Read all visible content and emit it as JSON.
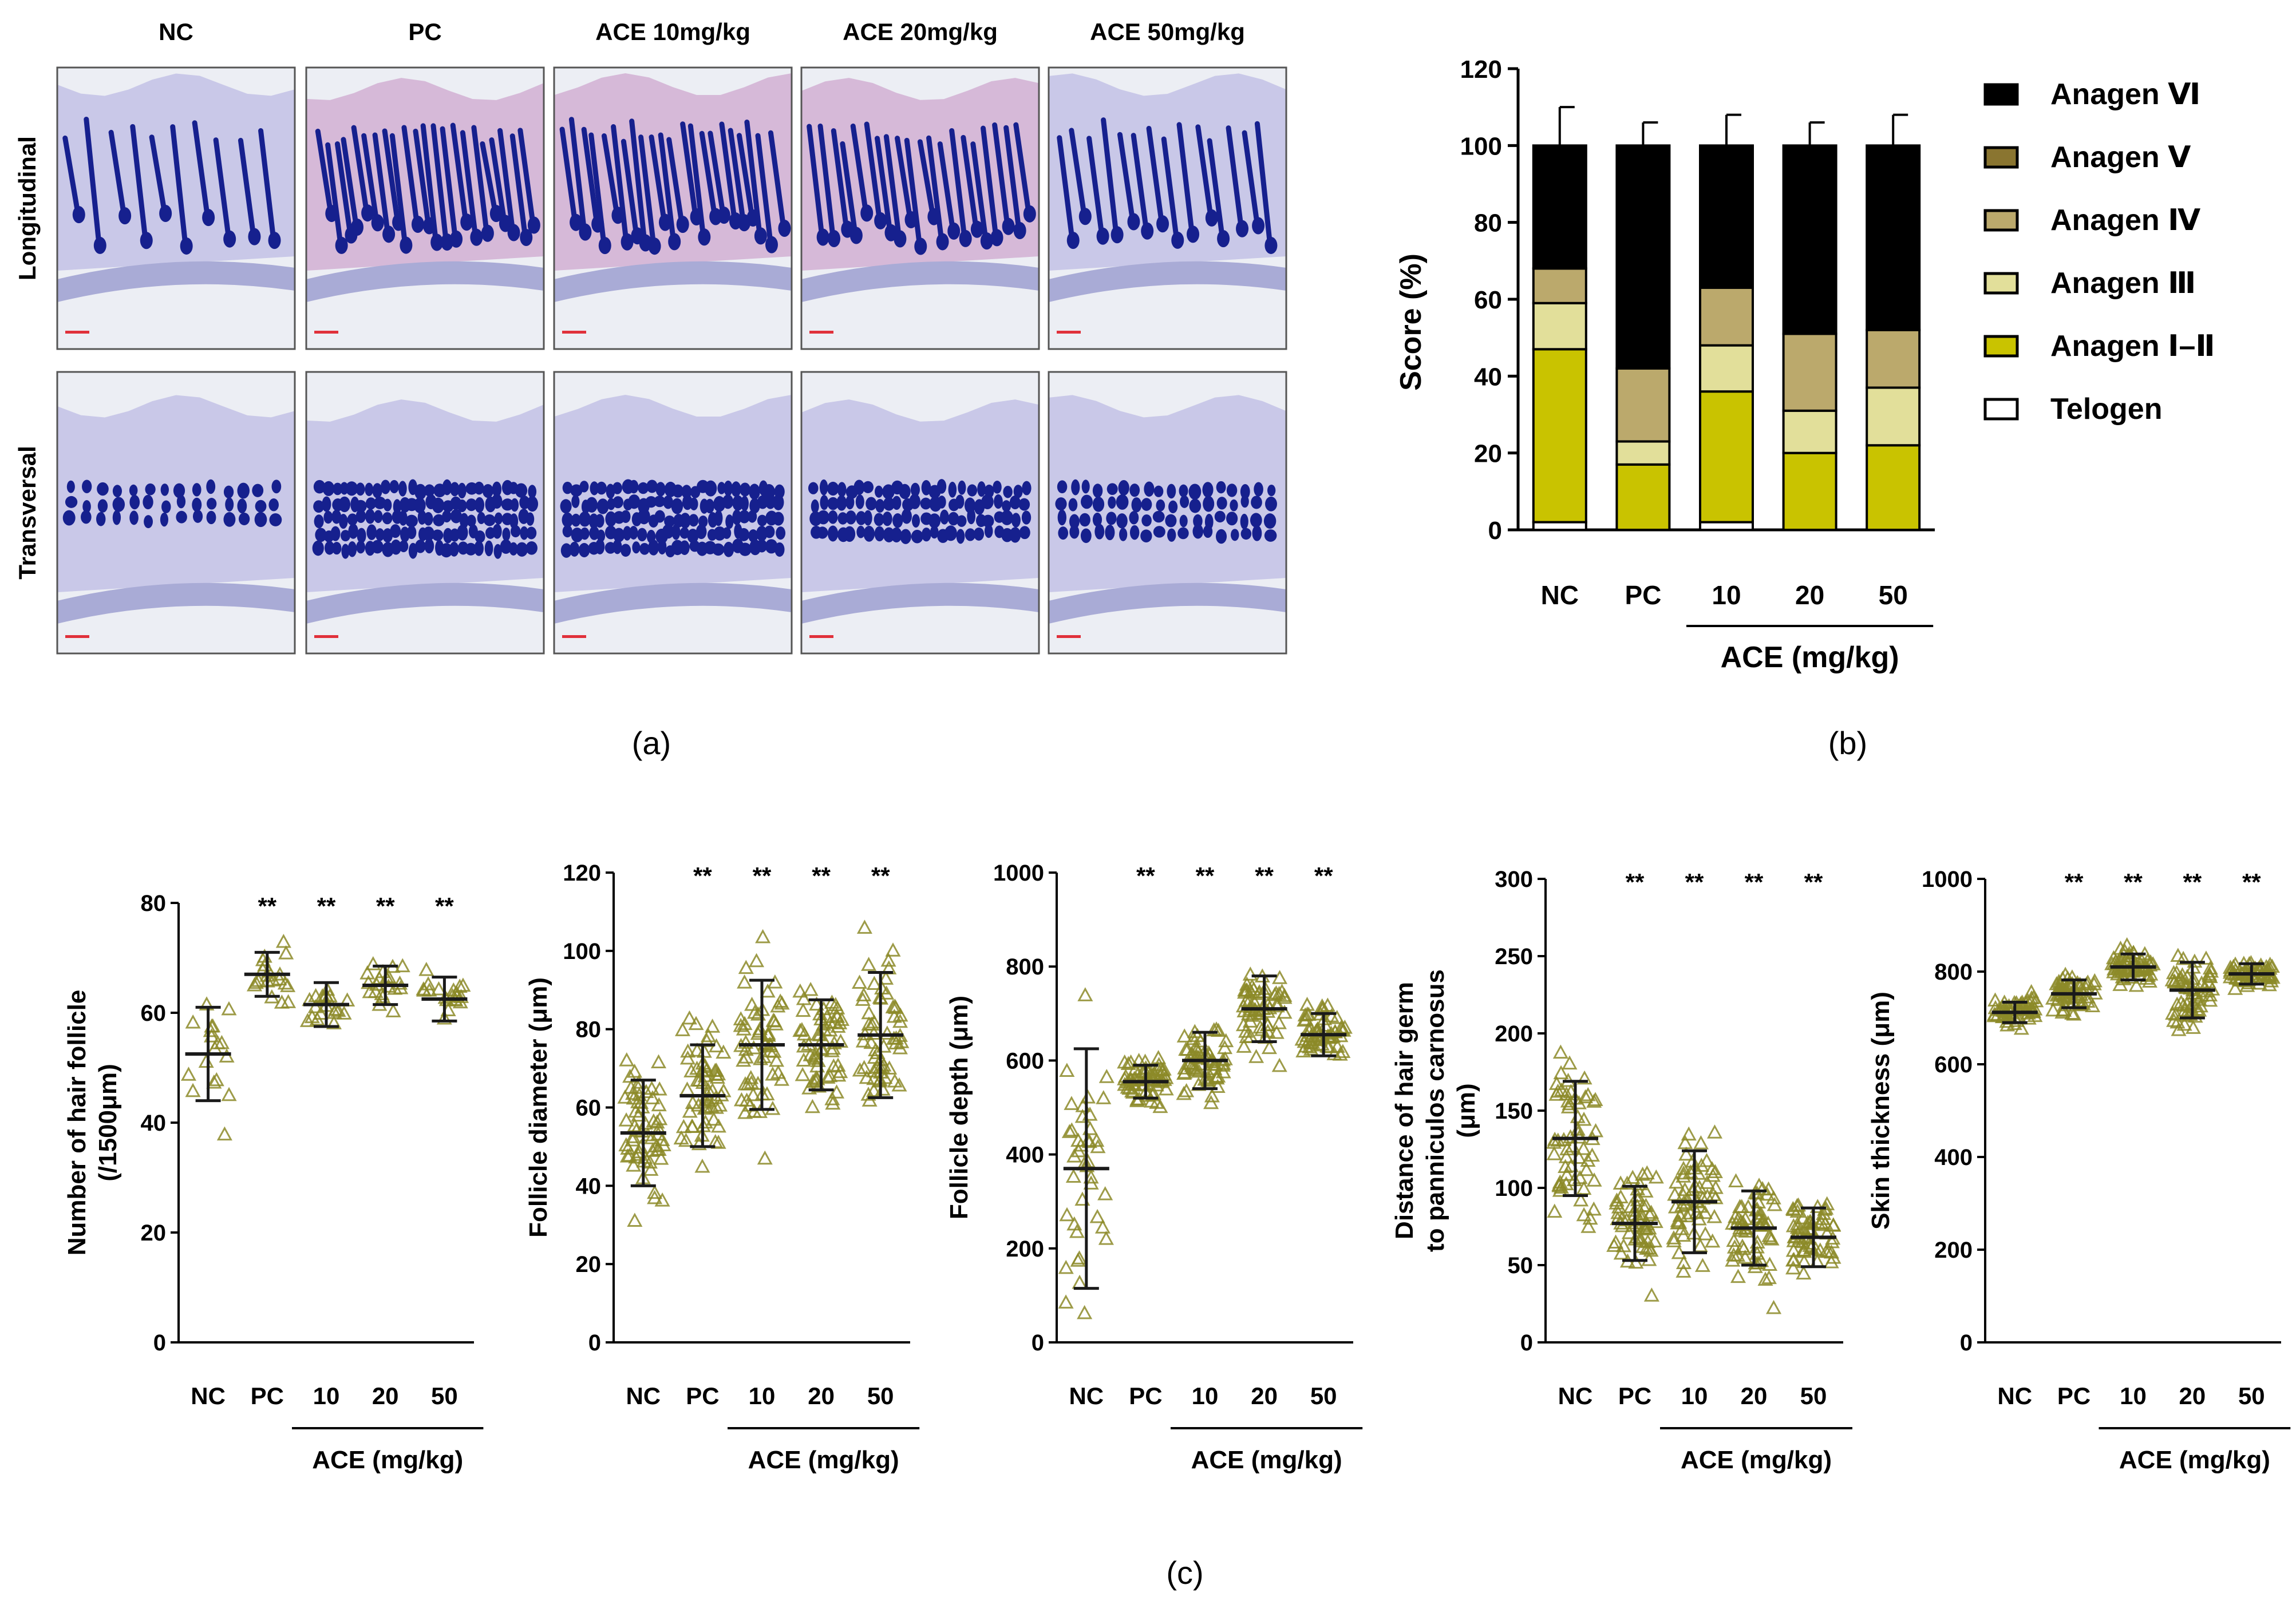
{
  "histology": {
    "columns": [
      "NC",
      "PC",
      "ACE 10mg/kg",
      "ACE 20mg/kg",
      "ACE 50mg/kg"
    ],
    "rows": [
      "Longitudinal",
      "Transversal"
    ],
    "colors": {
      "tissue": "#c9c8e8",
      "tissue_pink": "#d6b9d8",
      "follicle": "#16208e",
      "background": "#eceef4",
      "scale_bar": "#e0303a"
    }
  },
  "panel_labels": {
    "a": "(a)",
    "b": "(b)",
    "c": "(c)"
  },
  "chart_data": [
    {
      "id": "b",
      "type": "bar",
      "stacked": true,
      "categories": [
        "NC",
        "PC",
        "10",
        "20",
        "50"
      ],
      "group_label": "ACE (mg/kg)",
      "ylabel": "Score (%)",
      "ylim": [
        0,
        120
      ],
      "yticks": [
        0,
        20,
        40,
        60,
        80,
        100,
        120
      ],
      "legend_position": "right",
      "series": [
        {
          "name": "Telogen",
          "values": [
            2,
            0,
            2,
            0,
            0
          ],
          "errors": [
            2,
            0,
            5,
            0,
            0
          ],
          "color": "#ffffff"
        },
        {
          "name": "Anagen Ⅰ–Ⅱ",
          "values": [
            45,
            17,
            34,
            20,
            22
          ],
          "errors": [
            4,
            4,
            11,
            5,
            2
          ],
          "color": "#c9c300"
        },
        {
          "name": "Anagen Ⅲ",
          "values": [
            12,
            6,
            12,
            11,
            15
          ],
          "errors": [
            4,
            4,
            4,
            4,
            7
          ],
          "color": "#e2df9a"
        },
        {
          "name": "Anagen Ⅳ",
          "values": [
            9,
            19,
            15,
            20,
            15
          ],
          "errors": [
            0,
            0,
            0,
            0,
            0
          ],
          "color": "#bba96c"
        },
        {
          "name": "Anagen Ⅴ",
          "values": [
            0,
            0,
            0,
            0,
            0
          ],
          "errors": [
            0,
            0,
            0,
            0,
            0
          ],
          "color": "#8a7530"
        },
        {
          "name": "Anagen Ⅵ",
          "values": [
            32,
            58,
            37,
            49,
            48
          ],
          "errors": [
            10,
            6,
            8,
            6,
            8
          ],
          "color": "#000000"
        }
      ]
    },
    {
      "id": "c1",
      "type": "scatter",
      "categories": [
        "NC",
        "PC",
        "10",
        "20",
        "50"
      ],
      "group_label": "ACE (mg/kg)",
      "ylabel": "Number of hair follicle (/1500μm)",
      "ylabel_lines": [
        "Number of hair follicle",
        "(/1500μm)"
      ],
      "ylim": [
        0,
        80
      ],
      "yticks": [
        0,
        20,
        40,
        60,
        80
      ],
      "mean": [
        52.5,
        67,
        61.5,
        65,
        62.5
      ],
      "sd": [
        8.5,
        4,
        4,
        3.5,
        4
      ],
      "significance": [
        "",
        "**",
        "**",
        "**",
        "**"
      ],
      "n_points": [
        18,
        20,
        20,
        20,
        20
      ],
      "point_color": "#8c8a28"
    },
    {
      "id": "c2",
      "type": "scatter",
      "categories": [
        "NC",
        "PC",
        "10",
        "20",
        "50"
      ],
      "group_label": "ACE (mg/kg)",
      "ylabel": "Follicle diameter  (μm)",
      "ylabel_lines": [
        "Follicle diameter  (μm)"
      ],
      "ylim": [
        0,
        120
      ],
      "yticks": [
        0,
        20,
        40,
        60,
        80,
        100,
        120
      ],
      "mean": [
        53.5,
        63,
        76,
        76,
        78.5
      ],
      "sd": [
        13.5,
        13,
        16.5,
        11.5,
        16
      ],
      "significance": [
        "",
        "**",
        "**",
        "**",
        "**"
      ],
      "n_points": [
        60,
        60,
        60,
        60,
        60
      ],
      "point_color": "#8c8a28"
    },
    {
      "id": "c3",
      "type": "scatter",
      "categories": [
        "NC",
        "PC",
        "10",
        "20",
        "50"
      ],
      "group_label": "ACE (mg/kg)",
      "ylabel": "Follicle depth (μm)",
      "ylabel_lines": [
        "Follicle depth (μm)"
      ],
      "ylim": [
        0,
        1000
      ],
      "yticks": [
        0,
        200,
        400,
        600,
        800,
        1000
      ],
      "mean": [
        370,
        555,
        600,
        710,
        655
      ],
      "sd": [
        255,
        35,
        60,
        70,
        45
      ],
      "significance": [
        "",
        "**",
        "**",
        "**",
        "**"
      ],
      "n_points": [
        40,
        60,
        60,
        60,
        60
      ],
      "point_color": "#8c8a28"
    },
    {
      "id": "c4",
      "type": "scatter",
      "categories": [
        "NC",
        "PC",
        "10",
        "20",
        "50"
      ],
      "group_label": "ACE (mg/kg)",
      "ylabel": "Distance of hair germ to panniculos carnosus (μm)",
      "ylabel_lines": [
        "Distance of hair germ",
        "to panniculos carnosus",
        "(μm)"
      ],
      "ylim": [
        0,
        300
      ],
      "yticks": [
        0,
        50,
        100,
        150,
        200,
        250,
        300
      ],
      "mean": [
        132,
        77,
        91,
        74,
        68
      ],
      "sd": [
        37,
        24,
        33,
        24,
        19
      ],
      "significance": [
        "",
        "**",
        "**",
        "**",
        "**"
      ],
      "n_points": [
        60,
        60,
        60,
        60,
        60
      ],
      "point_color": "#8c8a28"
    },
    {
      "id": "c5",
      "type": "scatter",
      "categories": [
        "NC",
        "PC",
        "10",
        "20",
        "50"
      ],
      "group_label": "ACE (mg/kg)",
      "ylabel": "Skin thickness (μm)",
      "ylabel_lines": [
        "Skin thickness (μm)"
      ],
      "ylim": [
        0,
        1000
      ],
      "yticks": [
        0,
        200,
        400,
        600,
        800,
        1000
      ],
      "mean": [
        712,
        752,
        810,
        760,
        795
      ],
      "sd": [
        22,
        30,
        28,
        60,
        22
      ],
      "significance": [
        "",
        "**",
        "**",
        "**",
        "**"
      ],
      "n_points": [
        60,
        60,
        60,
        60,
        60
      ],
      "point_color": "#8c8a28"
    }
  ]
}
